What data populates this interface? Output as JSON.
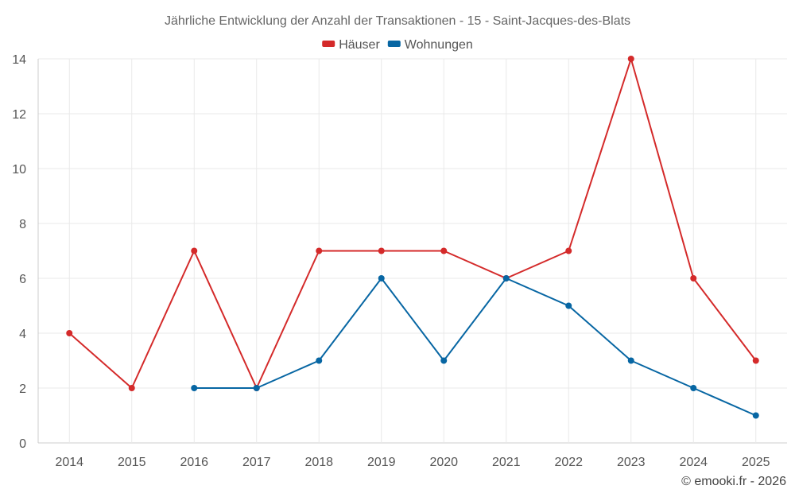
{
  "chart_data": {
    "type": "line",
    "title": "Jährliche Entwicklung der Anzahl der Transaktionen - 15 - Saint-Jacques-des-Blats",
    "categories": [
      "2014",
      "2015",
      "2016",
      "2017",
      "2018",
      "2019",
      "2020",
      "2021",
      "2022",
      "2023",
      "2024",
      "2025"
    ],
    "ylim": [
      0,
      14
    ],
    "yticks": [
      0,
      2,
      4,
      6,
      8,
      10,
      12,
      14
    ],
    "grid": true,
    "legend_position": "top-center",
    "series": [
      {
        "name": "Häuser",
        "color": "#d42a2a",
        "values": [
          4,
          2,
          7,
          2,
          7,
          7,
          7,
          6,
          7,
          14,
          6,
          3
        ]
      },
      {
        "name": "Wohnungen",
        "color": "#0766a3",
        "values": [
          null,
          null,
          2,
          2,
          3,
          6,
          3,
          6,
          5,
          3,
          2,
          1
        ]
      }
    ],
    "credit": "© emooki.fr - 2026"
  }
}
